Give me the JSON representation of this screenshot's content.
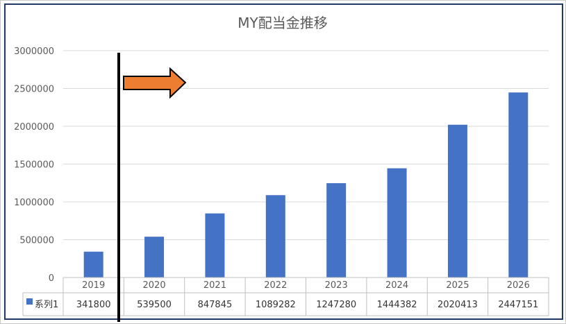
{
  "chart_data": {
    "type": "bar",
    "title": "MY配当金推移",
    "categories": [
      "2019",
      "2020",
      "2021",
      "2022",
      "2023",
      "2024",
      "2025",
      "2026"
    ],
    "series": [
      {
        "name": "系列1",
        "color": "#4472c4",
        "values": [
          341800,
          539500,
          847845,
          1089282,
          1247280,
          1444382,
          2020413,
          2447151
        ]
      }
    ],
    "y_ticks": [
      "0",
      "500000",
      "1000000",
      "1500000",
      "2000000",
      "2500000",
      "3000000"
    ],
    "ylim": [
      0,
      3000000
    ],
    "grid": true,
    "data_table": true,
    "annotations": {
      "arrow_color": "#ed7d31",
      "divider_color": "#000000"
    }
  }
}
